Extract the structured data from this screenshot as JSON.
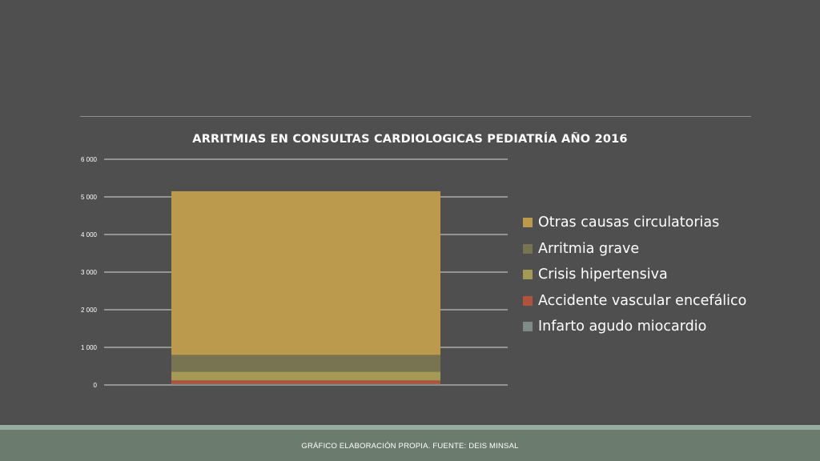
{
  "colors": {
    "background": "#4f4f4f",
    "footer_band": "#6b7c6e",
    "footer_accent": "#97ad9f",
    "gridline": "#d9d9d9",
    "text": "#ffffff"
  },
  "legend": {
    "items": [
      {
        "label": "Otras causas circulatorias",
        "color": "#bb9a4e"
      },
      {
        "label": "Arritmia grave",
        "color": "#787350"
      },
      {
        "label": "Crisis hipertensiva",
        "color": "#a59a55"
      },
      {
        "label": "Accidente vascular encefálico",
        "color": "#b1523d"
      },
      {
        "label": "Infarto agudo miocardio",
        "color": "#7f8c86"
      }
    ]
  },
  "footer": {
    "text": "GRÁFICO ELABORACIÓN PROPIA. FUENTE: DEIS MINSAL"
  },
  "chart_data": {
    "type": "bar",
    "stacked": true,
    "title": "ARRITMIAS EN CONSULTAS CARDIOLOGICAS PEDIATRÍA AÑO 2016",
    "xlabel": "",
    "ylabel": "",
    "categories": [
      ""
    ],
    "ylim": [
      0,
      6000
    ],
    "yticks": [
      0,
      1000,
      2000,
      3000,
      4000,
      5000,
      6000
    ],
    "ytick_labels": [
      "0",
      "1 000",
      "2 000",
      "3 000",
      "4 000",
      "5 000",
      "6 000"
    ],
    "grid": true,
    "legend_position": "right",
    "series": [
      {
        "name": "Infarto agudo miocardio",
        "values": [
          30
        ],
        "color": "#7f8c86"
      },
      {
        "name": "Accidente vascular encefálico",
        "values": [
          90
        ],
        "color": "#b1523d"
      },
      {
        "name": "Crisis hipertensiva",
        "values": [
          230
        ],
        "color": "#a59a55"
      },
      {
        "name": "Arritmia grave",
        "values": [
          450
        ],
        "color": "#787350"
      },
      {
        "name": "Otras causas circulatorias",
        "values": [
          4350
        ],
        "color": "#bb9a4e"
      }
    ]
  }
}
